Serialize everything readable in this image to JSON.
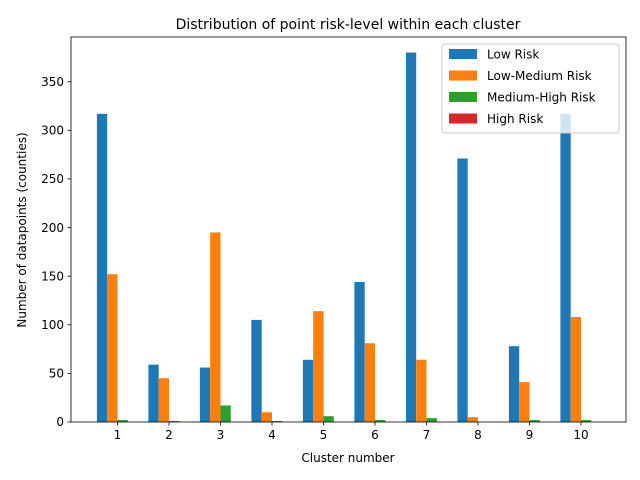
{
  "chart_data": {
    "type": "bar",
    "title": "Distribution of point risk-level within each cluster",
    "xlabel": "Cluster number",
    "ylabel": "Number of datapoints (counties)",
    "categories": [
      "1",
      "2",
      "3",
      "4",
      "5",
      "6",
      "7",
      "8",
      "9",
      "10"
    ],
    "ylim": [
      0,
      396
    ],
    "yticks": [
      0,
      50,
      100,
      150,
      200,
      250,
      300,
      350
    ],
    "grid": false,
    "legend_position": "top-right",
    "series": [
      {
        "name": "Low Risk",
        "color": "#1f77b4",
        "values": [
          317,
          59,
          56,
          105,
          64,
          144,
          380,
          271,
          78,
          317
        ]
      },
      {
        "name": "Low-Medium Risk",
        "color": "#ff7f0e",
        "values": [
          152,
          45,
          195,
          10,
          114,
          81,
          64,
          5,
          41,
          108
        ]
      },
      {
        "name": "Medium-High Risk",
        "color": "#2ca02c",
        "values": [
          2,
          1,
          17,
          1,
          6,
          2,
          4,
          0,
          2,
          2
        ]
      },
      {
        "name": "High Risk",
        "color": "#d62728",
        "values": [
          0,
          0,
          0,
          0,
          0,
          0,
          0,
          0,
          0,
          0
        ]
      }
    ]
  }
}
